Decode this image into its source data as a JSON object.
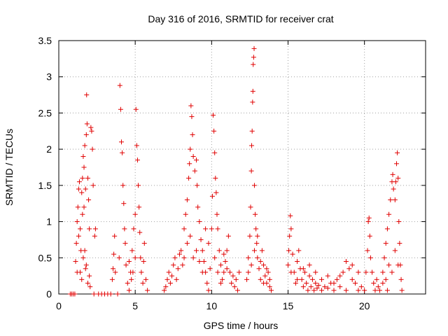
{
  "chart_data": {
    "type": "scatter",
    "title": "Day 316 of 2016, SRMTID for receiver crat",
    "xlabel": "GPS time / hours",
    "ylabel": "SRMTID / TECUs",
    "xlim": [
      0,
      24
    ],
    "ylim": [
      0,
      3.5
    ],
    "xticks": [
      0,
      5,
      10,
      15,
      20
    ],
    "xtick_labels": [
      "0",
      "5",
      "10",
      "15",
      "20"
    ],
    "yticks": [
      0,
      0.5,
      1,
      1.5,
      2,
      2.5,
      3,
      3.5
    ],
    "ytick_labels": [
      "0",
      "0.5",
      "1",
      "1.5",
      "2",
      "2.5",
      "3",
      "3.5"
    ],
    "grid": true,
    "marker": "+",
    "series": [
      {
        "name": "SRMTID",
        "color": "#e00000",
        "points": [
          [
            0.75,
            0
          ],
          [
            0.85,
            0
          ],
          [
            0.95,
            0
          ],
          [
            1.05,
            0
          ],
          [
            1.1,
            0.45
          ],
          [
            1.15,
            0.7
          ],
          [
            1.2,
            1.0
          ],
          [
            1.25,
            1.2
          ],
          [
            1.3,
            1.45
          ],
          [
            1.35,
            1.55
          ],
          [
            1.4,
            0.9
          ],
          [
            1.45,
            0.6
          ],
          [
            1.5,
            1.4
          ],
          [
            1.55,
            1.1
          ],
          [
            1.6,
            1.9
          ],
          [
            1.65,
            1.75
          ],
          [
            1.7,
            2.05
          ],
          [
            1.75,
            0.35
          ],
          [
            1.8,
            2.2
          ],
          [
            1.82,
            2.75
          ],
          [
            1.85,
            2.35
          ],
          [
            1.9,
            1.6
          ],
          [
            1.95,
            1.3
          ],
          [
            2.0,
            0.9
          ],
          [
            2.05,
            0.1
          ],
          [
            2.1,
            2.3
          ],
          [
            2.15,
            2.25
          ],
          [
            2.2,
            2.0
          ],
          [
            2.25,
            1.5
          ],
          [
            2.3,
            0.0
          ],
          [
            2.35,
            0.8
          ],
          [
            2.4,
            0.9
          ],
          [
            1.3,
            0.8
          ],
          [
            1.4,
            0.3
          ],
          [
            1.5,
            0.2
          ],
          [
            1.6,
            0.5
          ],
          [
            1.7,
            0.6
          ],
          [
            1.8,
            0.4
          ],
          [
            1.9,
            0.15
          ],
          [
            2.0,
            0.25
          ],
          [
            1.2,
            0.3
          ],
          [
            1.55,
            1.6
          ],
          [
            1.65,
            1.2
          ],
          [
            1.75,
            1.45
          ],
          [
            2.6,
            0
          ],
          [
            2.8,
            0
          ],
          [
            3.0,
            0
          ],
          [
            3.2,
            0
          ],
          [
            3.4,
            0
          ],
          [
            3.5,
            0.2
          ],
          [
            3.55,
            0.35
          ],
          [
            3.6,
            0.55
          ],
          [
            3.65,
            0.8
          ],
          [
            3.7,
            0.3
          ],
          [
            3.85,
            0
          ],
          [
            3.95,
            0.5
          ],
          [
            4.0,
            2.88
          ],
          [
            4.05,
            2.55
          ],
          [
            4.1,
            2.1
          ],
          [
            4.15,
            1.95
          ],
          [
            4.2,
            1.5
          ],
          [
            4.25,
            1.25
          ],
          [
            4.3,
            0.9
          ],
          [
            4.35,
            0.7
          ],
          [
            4.4,
            0.4
          ],
          [
            4.5,
            0.15
          ],
          [
            4.6,
            0.05
          ],
          [
            4.7,
            0.3
          ],
          [
            4.8,
            0.6
          ],
          [
            4.9,
            0.9
          ],
          [
            5.0,
            1.1
          ],
          [
            5.05,
            2.55
          ],
          [
            5.1,
            2.05
          ],
          [
            5.15,
            1.85
          ],
          [
            5.2,
            1.5
          ],
          [
            5.25,
            1.2
          ],
          [
            5.3,
            0.85
          ],
          [
            5.35,
            0.5
          ],
          [
            5.4,
            0.3
          ],
          [
            5.5,
            0.15
          ],
          [
            5.55,
            0.45
          ],
          [
            5.6,
            0.7
          ],
          [
            5.7,
            0.2
          ],
          [
            5.8,
            0.05
          ],
          [
            4.6,
            0.45
          ],
          [
            4.75,
            0.2
          ],
          [
            4.85,
            0.3
          ],
          [
            5.0,
            0.5
          ],
          [
            6.9,
            0.05
          ],
          [
            7.0,
            0.1
          ],
          [
            7.1,
            0.2
          ],
          [
            7.2,
            0.3
          ],
          [
            7.3,
            0.15
          ],
          [
            7.4,
            0.25
          ],
          [
            7.5,
            0.4
          ],
          [
            7.6,
            0.5
          ],
          [
            7.7,
            0.2
          ],
          [
            7.8,
            0.35
          ],
          [
            7.9,
            0.55
          ],
          [
            8.0,
            0.6
          ],
          [
            8.1,
            0.4
          ],
          [
            8.2,
            0.9
          ],
          [
            8.3,
            1.1
          ],
          [
            8.4,
            1.3
          ],
          [
            8.5,
            1.6
          ],
          [
            8.55,
            1.8
          ],
          [
            8.6,
            2.0
          ],
          [
            8.65,
            2.6
          ],
          [
            8.7,
            2.45
          ],
          [
            8.75,
            2.2
          ],
          [
            8.8,
            1.9
          ],
          [
            8.9,
            1.7
          ],
          [
            9.0,
            1.85
          ],
          [
            9.05,
            1.5
          ],
          [
            9.1,
            1.2
          ],
          [
            9.2,
            1.0
          ],
          [
            9.3,
            0.75
          ],
          [
            9.4,
            0.6
          ],
          [
            9.5,
            0.45
          ],
          [
            9.6,
            0.3
          ],
          [
            9.7,
            0.15
          ],
          [
            9.8,
            0.05
          ],
          [
            9.9,
            0.35
          ],
          [
            10.0,
            0.9
          ],
          [
            10.05,
            1.35
          ],
          [
            10.1,
            2.47
          ],
          [
            10.15,
            2.25
          ],
          [
            10.2,
            1.95
          ],
          [
            10.25,
            1.6
          ],
          [
            10.3,
            1.4
          ],
          [
            10.35,
            1.1
          ],
          [
            10.4,
            0.9
          ],
          [
            10.5,
            0.6
          ],
          [
            10.6,
            0.4
          ],
          [
            10.7,
            0.2
          ],
          [
            10.8,
            0.3
          ],
          [
            10.9,
            0.45
          ],
          [
            11.0,
            0.6
          ],
          [
            11.1,
            0.8
          ],
          [
            11.2,
            0.3
          ],
          [
            11.3,
            0.15
          ],
          [
            11.4,
            0.25
          ],
          [
            11.5,
            0.1
          ],
          [
            11.6,
            0.2
          ],
          [
            11.7,
            0.05
          ],
          [
            11.8,
            0.3
          ],
          [
            8.2,
            0.5
          ],
          [
            8.4,
            0.7
          ],
          [
            8.6,
            0.8
          ],
          [
            8.8,
            0.5
          ],
          [
            9.0,
            0.6
          ],
          [
            9.2,
            0.45
          ],
          [
            9.4,
            0.3
          ],
          [
            9.6,
            0.9
          ],
          [
            9.8,
            0.7
          ],
          [
            10.2,
            0.5
          ],
          [
            10.4,
            0.3
          ],
          [
            10.6,
            0.15
          ],
          [
            10.8,
            0.55
          ],
          [
            11.0,
            0.35
          ],
          [
            12.3,
            0.2
          ],
          [
            12.4,
            0.5
          ],
          [
            12.5,
            0.8
          ],
          [
            12.55,
            1.2
          ],
          [
            12.6,
            1.7
          ],
          [
            12.62,
            2.05
          ],
          [
            12.65,
            2.25
          ],
          [
            12.68,
            2.65
          ],
          [
            12.7,
            2.8
          ],
          [
            12.72,
            3.17
          ],
          [
            12.75,
            3.27
          ],
          [
            12.78,
            3.39
          ],
          [
            12.8,
            1.5
          ],
          [
            12.85,
            1.1
          ],
          [
            12.9,
            0.9
          ],
          [
            12.95,
            0.7
          ],
          [
            13.0,
            0.5
          ],
          [
            13.1,
            0.35
          ],
          [
            13.2,
            0.2
          ],
          [
            13.3,
            0.6
          ],
          [
            13.4,
            0.4
          ],
          [
            13.5,
            0.25
          ],
          [
            13.6,
            0.15
          ],
          [
            13.7,
            0.3
          ],
          [
            13.8,
            0.1
          ],
          [
            13.9,
            0.05
          ],
          [
            12.4,
            0.3
          ],
          [
            12.6,
            0.4
          ],
          [
            12.8,
            0.6
          ],
          [
            13.0,
            0.8
          ],
          [
            13.2,
            0.45
          ],
          [
            13.4,
            0.15
          ],
          [
            13.6,
            0.35
          ],
          [
            13.8,
            0.2
          ],
          [
            15.0,
            0.4
          ],
          [
            15.05,
            0.6
          ],
          [
            15.1,
            0.8
          ],
          [
            15.15,
            1.08
          ],
          [
            15.2,
            0.9
          ],
          [
            15.3,
            0.55
          ],
          [
            15.4,
            0.3
          ],
          [
            15.5,
            0.15
          ],
          [
            15.6,
            0.45
          ],
          [
            15.7,
            0.6
          ],
          [
            15.8,
            0.35
          ],
          [
            15.9,
            0.2
          ],
          [
            16.0,
            0.1
          ],
          [
            16.1,
            0.3
          ],
          [
            16.2,
            0.15
          ],
          [
            16.3,
            0.05
          ],
          [
            16.4,
            0.25
          ],
          [
            16.5,
            0.1
          ],
          [
            16.6,
            0.2
          ],
          [
            16.7,
            0.05
          ],
          [
            16.8,
            0.15
          ],
          [
            16.9,
            0.08
          ],
          [
            17.0,
            0.12
          ],
          [
            17.2,
            0.2
          ],
          [
            17.4,
            0.1
          ],
          [
            17.6,
            0.25
          ],
          [
            17.8,
            0.15
          ],
          [
            18.0,
            0.05
          ],
          [
            18.2,
            0.2
          ],
          [
            18.4,
            0.1
          ],
          [
            18.6,
            0.3
          ],
          [
            18.8,
            0.45
          ],
          [
            19.0,
            0.35
          ],
          [
            19.2,
            0.2
          ],
          [
            19.4,
            0.15
          ],
          [
            19.6,
            0.3
          ],
          [
            19.8,
            0.1
          ],
          [
            20.0,
            0.05
          ],
          [
            15.2,
            0.3
          ],
          [
            15.6,
            0.2
          ],
          [
            16.0,
            0.35
          ],
          [
            16.4,
            0.4
          ],
          [
            16.8,
            0.3
          ],
          [
            17.2,
            0.05
          ],
          [
            17.6,
            0.08
          ],
          [
            18.0,
            0.15
          ],
          [
            18.4,
            0.25
          ],
          [
            18.8,
            0.05
          ],
          [
            19.2,
            0.4
          ],
          [
            19.6,
            0.05
          ],
          [
            20.1,
            0.3
          ],
          [
            20.2,
            0.6
          ],
          [
            20.25,
            1.0
          ],
          [
            20.3,
            1.05
          ],
          [
            20.35,
            0.8
          ],
          [
            20.4,
            0.5
          ],
          [
            20.5,
            0.3
          ],
          [
            20.6,
            0.15
          ],
          [
            20.7,
            0.05
          ],
          [
            20.8,
            0.2
          ],
          [
            20.9,
            0.1
          ],
          [
            21.0,
            0.05
          ],
          [
            21.2,
            0.3
          ],
          [
            21.3,
            0.5
          ],
          [
            21.4,
            0.7
          ],
          [
            21.5,
            0.9
          ],
          [
            21.6,
            1.1
          ],
          [
            21.7,
            1.3
          ],
          [
            21.8,
            1.55
          ],
          [
            21.85,
            1.65
          ],
          [
            21.9,
            1.45
          ],
          [
            22.0,
            1.3
          ],
          [
            22.05,
            1.55
          ],
          [
            22.1,
            1.8
          ],
          [
            22.15,
            1.95
          ],
          [
            22.2,
            1.6
          ],
          [
            22.25,
            1.0
          ],
          [
            22.3,
            0.7
          ],
          [
            22.35,
            0.4
          ],
          [
            22.4,
            0.2
          ],
          [
            22.45,
            0.05
          ],
          [
            21.4,
            0.2
          ],
          [
            21.6,
            0.4
          ],
          [
            21.8,
            0.3
          ],
          [
            22.0,
            0.6
          ],
          [
            22.2,
            0.4
          ],
          [
            21.2,
            0.15
          ],
          [
            21.5,
            0.05
          ]
        ]
      }
    ]
  }
}
